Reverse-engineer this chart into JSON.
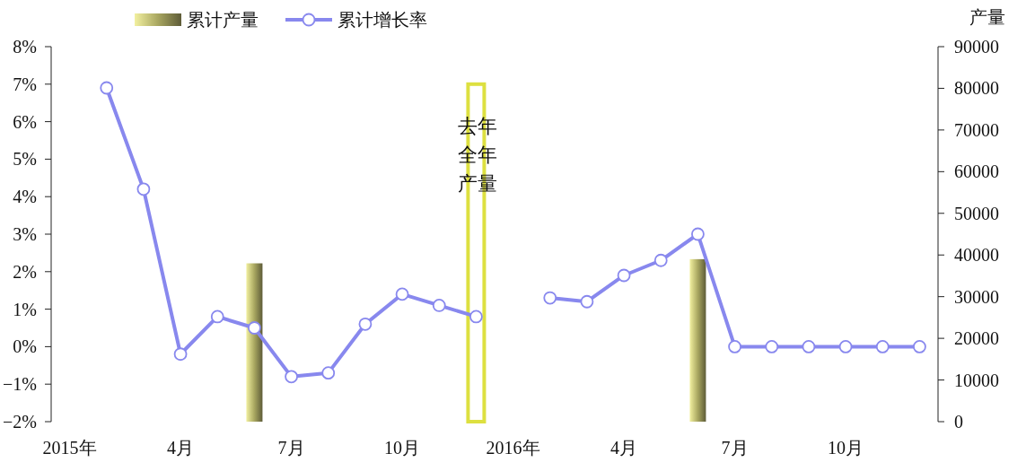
{
  "chart_data": {
    "type": "line",
    "categories": [
      "2015年",
      null,
      null,
      "4月",
      null,
      null,
      "7月",
      null,
      null,
      "10月",
      null,
      null,
      "2016年",
      null,
      null,
      "4月",
      null,
      null,
      "7月",
      null,
      null,
      "10月",
      null,
      null
    ],
    "series": [
      {
        "name": "累计产量",
        "type": "bar",
        "axis": "y2",
        "color": "#a8a660",
        "values": [
          null,
          null,
          null,
          null,
          null,
          38000,
          null,
          null,
          null,
          null,
          null,
          null,
          null,
          null,
          null,
          null,
          null,
          39000,
          null,
          null,
          null,
          null,
          null,
          null
        ]
      },
      {
        "type": "bar",
        "axis": "y2",
        "color": "#dde040",
        "values": [
          null,
          null,
          null,
          null,
          null,
          null,
          null,
          null,
          null,
          null,
          null,
          81000,
          null,
          null,
          null,
          null,
          null,
          null,
          null,
          null,
          null,
          null,
          null,
          null
        ]
      },
      {
        "name": "累计增长率",
        "color": "#8888ee",
        "values": [
          null,
          6.9,
          4.2,
          -0.2,
          0.8,
          0.5,
          -0.8,
          -0.7,
          0.6,
          1.4,
          1.1,
          0.8,
          null,
          1.3,
          1.2,
          1.9,
          2.3,
          3.0,
          0,
          0,
          0,
          0,
          0,
          0
        ]
      }
    ],
    "ylim": [
      -2,
      8
    ],
    "yticks": [
      {
        "value": -2,
        "label": "−2%"
      },
      {
        "value": -1,
        "label": "−1%"
      },
      {
        "value": 0,
        "label": "0%"
      },
      {
        "value": 1,
        "label": "1%"
      },
      {
        "value": 2,
        "label": "2%"
      },
      {
        "value": 3,
        "label": "3%"
      },
      {
        "value": 4,
        "label": "4%"
      },
      {
        "value": 5,
        "label": "5%"
      },
      {
        "value": 6,
        "label": "6%"
      },
      {
        "value": 7,
        "label": "7%"
      },
      {
        "value": 8,
        "label": "8%"
      }
    ],
    "y2lim": [
      0,
      90000
    ],
    "y2ticks": [
      0,
      10000,
      20000,
      30000,
      40000,
      50000,
      60000,
      70000,
      80000,
      90000
    ],
    "y2label": "产量",
    "annotations": [
      "去年全年产量"
    ],
    "marker": "circle",
    "line_style": "solid",
    "grid": false,
    "legend": "top"
  }
}
